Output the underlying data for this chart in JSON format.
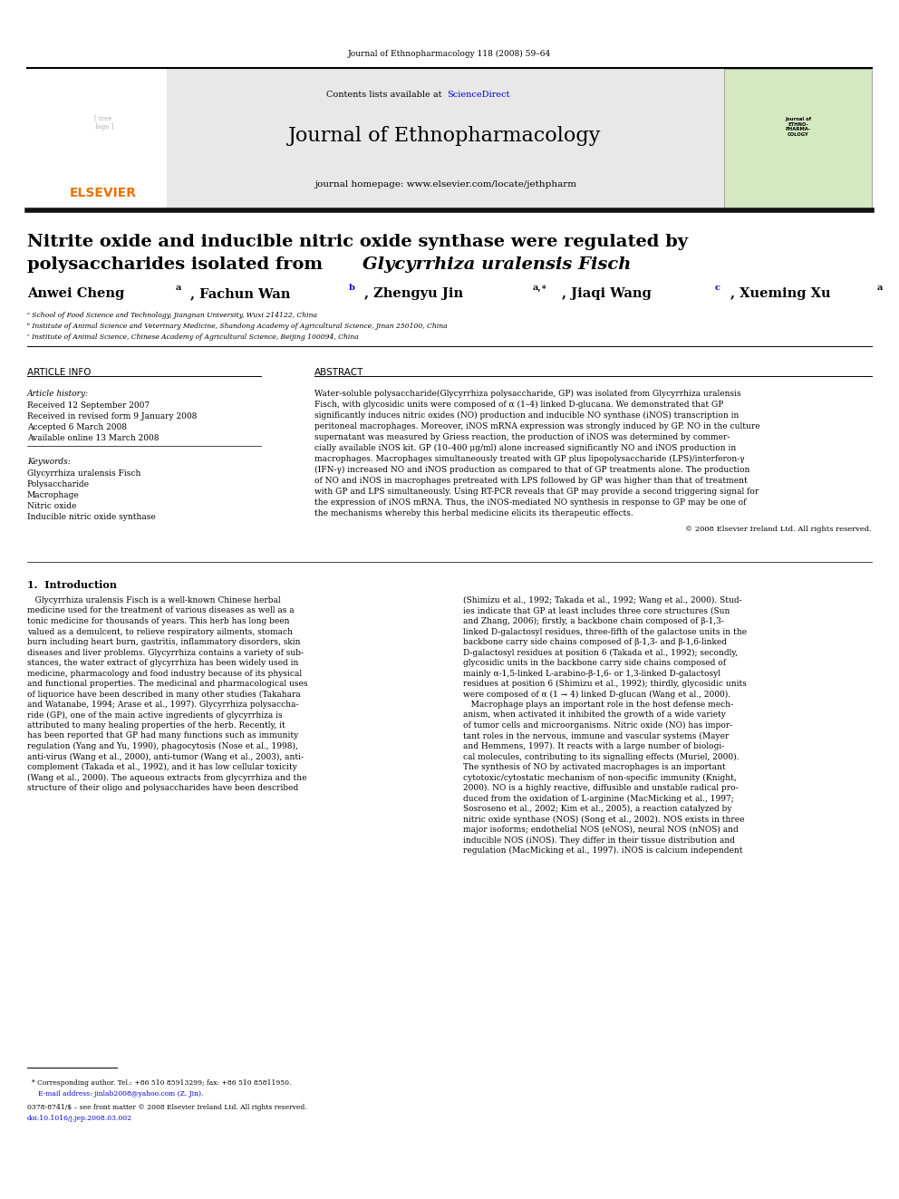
{
  "page_width": 9.92,
  "page_height": 13.23,
  "background_color": "#ffffff",
  "journal_ref": "Journal of Ethnopharmacology 118 (2008) 59–64",
  "journal_name": "Journal of Ethnopharmacology",
  "journal_homepage": "journal homepage: www.elsevier.com/locate/jethpharm",
  "contents_line": "Contents lists available at ScienceDirect",
  "elsevier_text": "ELSEVIER",
  "affil_a": "ᵃ School of Food Science and Technology, Jiangnan University, Wuxi 214122, China",
  "affil_b": "ᵇ Institute of Animal Science and Veterinary Medicine, Shandong Academy of Agricultural Science, Jinan 250100, China",
  "affil_c": "ᶜ Institute of Animal Science, Chinese Academy of Agricultural Science, Beijing 100094, China",
  "section_article_info": "ARTICLE INFO",
  "section_abstract": "ABSTRACT",
  "article_history_label": "Article history:",
  "received": "Received 12 September 2007",
  "received_revised": "Received in revised form 9 January 2008",
  "accepted": "Accepted 6 March 2008",
  "available": "Available online 13 March 2008",
  "keywords_label": "Keywords:",
  "keyword1": "Glycyrrhiza uralensis Fisch",
  "keyword2": "Polysaccharide",
  "keyword3": "Macrophage",
  "keyword4": "Nitric oxide",
  "keyword5": "Inducible nitric oxide synthase",
  "copyright": "© 2008 Elsevier Ireland Ltd. All rights reserved.",
  "intro_heading": "1.  Introduction",
  "footnote1": "* Corresponding author. Tel.: +86 510 85913299; fax: +86 510 85811950.",
  "footnote2": "   E-mail address: jinlab2008@yahoo.com (Z. Jin).",
  "footnote3": "0378-8741/$ – see front matter © 2008 Elsevier Ireland Ltd. All rights reserved.",
  "footnote4": "doi:10.1016/j.jep.2008.03.002",
  "header_bg": "#e8e8e8",
  "elsevier_color": "#f07000",
  "link_color": "#0000cc",
  "sciencedirect_color": "#0000dd"
}
